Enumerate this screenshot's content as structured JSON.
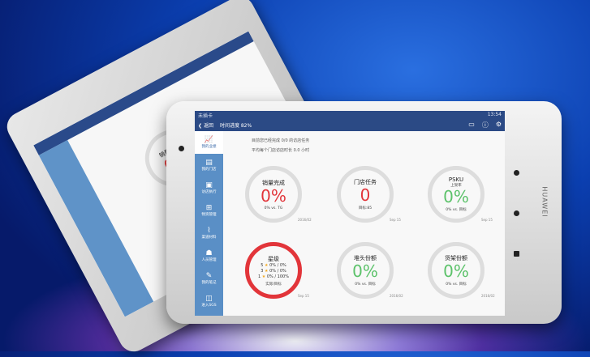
{
  "status": {
    "carrier": "未插卡",
    "time": "13:54"
  },
  "header": {
    "back_label": "返回",
    "progress_label": "时间进度 82%"
  },
  "sidebar": {
    "items": [
      {
        "label": "我的业绩",
        "icon": "chart-icon"
      },
      {
        "label": "我的门店",
        "icon": "store-icon"
      },
      {
        "label": "访店执行",
        "icon": "clipboard-icon"
      },
      {
        "label": "物资管理",
        "icon": "grid-icon"
      },
      {
        "label": "渠道材料",
        "icon": "paperclip-icon"
      },
      {
        "label": "人员管理",
        "icon": "people-icon"
      },
      {
        "label": "我的笔记",
        "icon": "note-icon"
      },
      {
        "label": "进入SGS",
        "icon": "enter-icon"
      }
    ]
  },
  "summary": {
    "line1": "目前您已经完成 0/0 的访店任务",
    "line2": "平均每个门店访店时长 0.0 小时"
  },
  "gauges": [
    {
      "title": "销量完成",
      "value": "0%",
      "footer": "0% vs. TG",
      "date": "2016/02",
      "color": "red"
    },
    {
      "title": "门店任务",
      "value": "0",
      "footer": "目标:85",
      "date": "Sep 15",
      "color": "red"
    },
    {
      "title": "PSKU",
      "subtitle": "上架率",
      "value": "0%",
      "footer": "0% vs. 目标",
      "date": "Sep 15",
      "color": "green"
    },
    {
      "title": "星级",
      "stars": [
        {
          "n": "5",
          "text": "0% / 0%"
        },
        {
          "n": "3",
          "text": "0% / 0%"
        },
        {
          "n": "1",
          "text": "0% / 100%"
        }
      ],
      "footer": "实际/目标",
      "date": "Sep 15"
    },
    {
      "title": "堆头份额",
      "value": "0%",
      "footer": "0% vs. 目标",
      "date": "2016/02",
      "color": "green"
    },
    {
      "title": "货架份额",
      "value": "0%",
      "footer": "0% vs. 目标",
      "date": "2016/02",
      "color": "green"
    }
  ],
  "brand": "HUAWEI",
  "back_tablet": {
    "title": "销量完成",
    "value": "0%"
  },
  "colors": {
    "header": "#2b4a85",
    "sidebar": "#5a8fc6",
    "red": "#e2353a",
    "green": "#5cc26a"
  }
}
